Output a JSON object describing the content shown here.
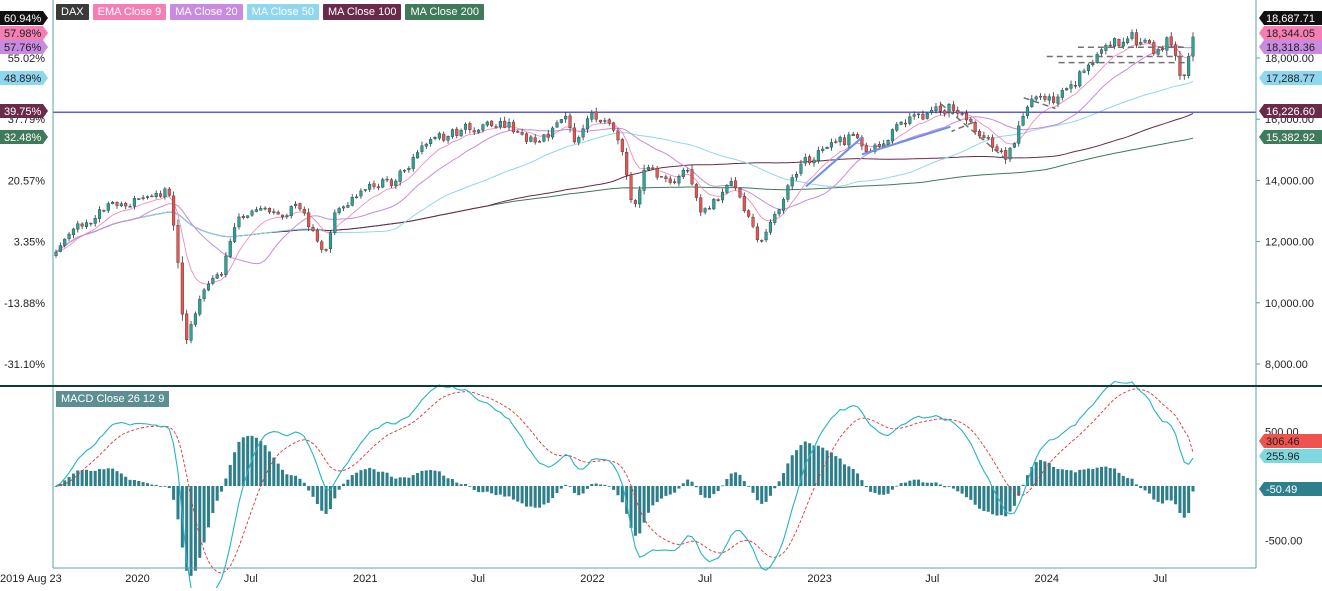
{
  "legend": [
    {
      "label": "DAX",
      "color": "#3a3a3a"
    },
    {
      "label": "EMA Close 9",
      "color": "#f57fb3"
    },
    {
      "label": "MA Close 20",
      "color": "#c88be0"
    },
    {
      "label": "MA Close 50",
      "color": "#8fd6ef"
    },
    {
      "label": "MA Close 100",
      "color": "#6a2a4a"
    },
    {
      "label": "MA Close 200",
      "color": "#3f7a5a"
    }
  ],
  "macd_legend": "MACD Close 26 12 9",
  "colors": {
    "up": "#26a69a",
    "down": "#ef5350",
    "support_line": "#5b61d6",
    "trend_line": "#6a8fe8",
    "dashed": "#707070",
    "macd_line": "#26b3c3",
    "signal_line": "#e03030",
    "histogram": "#2e7f8c",
    "axis": "#5aa0a8",
    "divider": "#0f3a3a"
  },
  "chart_data": [
    {
      "type": "candlestick",
      "title": "DAX",
      "x_range": [
        "2019-08-23",
        "2024-08-23"
      ],
      "ylim": [
        7500,
        19200
      ],
      "right_axis_ticks": [
        "8,000.00",
        "10,000.00",
        "12,000.00",
        "14,000.00",
        "16,000.00",
        "18,000.00"
      ],
      "right_axis_tick_values": [
        8000,
        10000,
        12000,
        14000,
        16000,
        18000
      ],
      "left_axis_ticks": [
        "-31.10%",
        "-13.88%",
        "3.35%",
        "20.57%",
        "37.79%",
        "55.02%"
      ],
      "left_axis_tick_values": [
        8000,
        10000,
        12000,
        14000,
        16000,
        18000
      ],
      "x_axis_labels": [
        {
          "label": "2019 Aug 23",
          "date": "2019-08-23"
        },
        {
          "label": "2020",
          "date": "2020-01-01"
        },
        {
          "label": "Jul",
          "date": "2020-07-01"
        },
        {
          "label": "2021",
          "date": "2021-01-01"
        },
        {
          "label": "Jul",
          "date": "2021-07-01"
        },
        {
          "label": "2022",
          "date": "2022-01-01"
        },
        {
          "label": "Jul",
          "date": "2022-07-01"
        },
        {
          "label": "2023",
          "date": "2023-01-01"
        },
        {
          "label": "Jul",
          "date": "2023-07-01"
        },
        {
          "label": "2024",
          "date": "2024-01-01"
        },
        {
          "label": "Jul",
          "date": "2024-07-01"
        }
      ],
      "price_keypoints": [
        [
          "2019-08-23",
          11600
        ],
        [
          "2019-09-20",
          12400
        ],
        [
          "2019-10-15",
          12600
        ],
        [
          "2019-11-10",
          13200
        ],
        [
          "2019-12-15",
          13200
        ],
        [
          "2020-01-15",
          13500
        ],
        [
          "2020-02-20",
          13600
        ],
        [
          "2020-03-05",
          11500
        ],
        [
          "2020-03-18",
          8600
        ],
        [
          "2020-04-15",
          10500
        ],
        [
          "2020-05-15",
          11000
        ],
        [
          "2020-06-08",
          12800
        ],
        [
          "2020-07-20",
          13000
        ],
        [
          "2020-08-20",
          12900
        ],
        [
          "2020-09-15",
          13200
        ],
        [
          "2020-10-29",
          11600
        ],
        [
          "2020-11-15",
          13000
        ],
        [
          "2020-12-30",
          13700
        ],
        [
          "2021-02-15",
          14000
        ],
        [
          "2021-03-15",
          14600
        ],
        [
          "2021-04-15",
          15300
        ],
        [
          "2021-06-15",
          15700
        ],
        [
          "2021-08-15",
          15900
        ],
        [
          "2021-10-05",
          15100
        ],
        [
          "2021-11-17",
          16200
        ],
        [
          "2021-12-01",
          15200
        ],
        [
          "2022-01-05",
          16200
        ],
        [
          "2022-02-15",
          15400
        ],
        [
          "2022-03-07",
          13100
        ],
        [
          "2022-03-30",
          14600
        ],
        [
          "2022-05-10",
          13700
        ],
        [
          "2022-06-01",
          14500
        ],
        [
          "2022-06-25",
          12900
        ],
        [
          "2022-08-15",
          13900
        ],
        [
          "2022-09-29",
          11900
        ],
        [
          "2022-10-30",
          13200
        ],
        [
          "2022-12-01",
          14500
        ],
        [
          "2023-01-15",
          15100
        ],
        [
          "2023-03-01",
          15500
        ],
        [
          "2023-03-20",
          14900
        ],
        [
          "2023-05-15",
          15900
        ],
        [
          "2023-07-30",
          16400
        ],
        [
          "2023-09-01",
          15800
        ],
        [
          "2023-10-27",
          14700
        ],
        [
          "2023-11-30",
          16200
        ],
        [
          "2023-12-15",
          16750
        ],
        [
          "2024-01-15",
          16600
        ],
        [
          "2024-02-25",
          17400
        ],
        [
          "2024-03-30",
          18400
        ],
        [
          "2024-05-15",
          18700
        ],
        [
          "2024-06-25",
          18200
        ],
        [
          "2024-07-15",
          18600
        ],
        [
          "2024-08-05",
          17300
        ],
        [
          "2024-08-23",
          18650
        ]
      ],
      "indicators": [
        {
          "name": "EMA Close 9",
          "value_label": "18,344.05",
          "percent_label": "57.98%",
          "last": 18344.05
        },
        {
          "name": "MA Close 20",
          "value_label": "18,318.36",
          "percent_label": "57.76%",
          "last": 18318.36
        },
        {
          "name": "MA Close 50",
          "value_label": "17,288.77",
          "percent_label": "48.89%",
          "last": 17288.77
        },
        {
          "name": "MA Close 100",
          "value_label": "16,226.60",
          "percent_label": "39.75%",
          "last": 16226.6
        },
        {
          "name": "MA Close 200",
          "value_label": "15,382.92",
          "percent_label": "32.48%",
          "last": 15382.92
        }
      ],
      "last_price": {
        "value_label": "18,687.71",
        "percent_label": "60.94%",
        "value": 18687.71
      },
      "horizontal_line": 16226.6,
      "trend_lines": [
        {
          "start": [
            "2022-12-10",
            13800
          ],
          "end": [
            "2023-03-10",
            15400
          ],
          "style": "solid"
        },
        {
          "start": [
            "2023-03-10",
            14850
          ],
          "end": [
            "2023-07-30",
            15750
          ],
          "style": "solid"
        },
        {
          "start": [
            "2023-07-15",
            16500
          ],
          "end": [
            "2023-10-27",
            14700
          ],
          "style": "dashed"
        },
        {
          "start": [
            "2023-09-05",
            15900
          ],
          "end": [
            "2023-08-01",
            15600
          ],
          "style": "dashed"
        },
        {
          "start": [
            "2024-01-01",
            18050
          ],
          "end": [
            "2024-08-10",
            18050
          ],
          "style": "dashed"
        },
        {
          "start": [
            "2024-02-20",
            18350
          ],
          "end": [
            "2024-08-10",
            18350
          ],
          "style": "dashed"
        },
        {
          "start": [
            "2024-01-20",
            17850
          ],
          "end": [
            "2024-08-10",
            17850
          ],
          "style": "dashed"
        },
        {
          "start": [
            "2023-11-25",
            16700
          ],
          "end": [
            "2024-01-15",
            16350
          ],
          "style": "dashed"
        }
      ]
    },
    {
      "type": "macd",
      "title": "MACD Close 26 12 9",
      "ylim": [
        -700,
        700
      ],
      "right_axis_ticks": [
        "500.00",
        "-500.00"
      ],
      "right_axis_tick_values": [
        500,
        -500
      ],
      "last_labels": [
        {
          "name": "signal",
          "value_label": "306.46",
          "value": 306.46
        },
        {
          "name": "macd",
          "value_label": "255.96",
          "value": 255.96
        },
        {
          "name": "histogram",
          "value_label": "-50.49",
          "value": -50.49
        }
      ]
    }
  ]
}
